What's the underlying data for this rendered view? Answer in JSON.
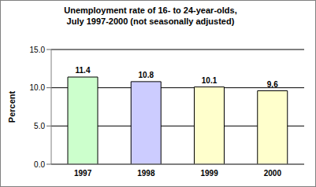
{
  "chart_data": {
    "type": "bar",
    "title": [
      "Unemployment rate of 16- to 24-year-olds,",
      "July 1997-2000 (not seasonally adjusted)"
    ],
    "y_label": "Percent",
    "categories": [
      "1997",
      "1998",
      "1999",
      "2000"
    ],
    "values": [
      11.4,
      10.8,
      10.1,
      9.6
    ],
    "colors": [
      "#ccffcc",
      "#ccccff",
      "#ffffcc",
      "#ffffcc"
    ],
    "ylim": [
      0,
      15
    ],
    "yticks": [
      {
        "value": 0,
        "label": "0.0"
      },
      {
        "value": 5,
        "label": "5.0"
      },
      {
        "value": 10,
        "label": "10.0"
      },
      {
        "value": 15,
        "label": "15.0"
      }
    ],
    "grid": true,
    "data_labels": true
  }
}
